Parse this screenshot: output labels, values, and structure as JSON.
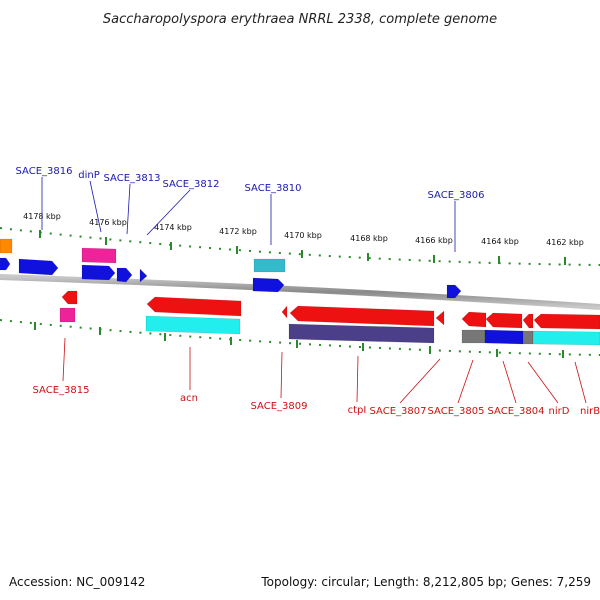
{
  "title": "Saccharopolyspora erythraea NRRL 2338, complete genome",
  "accession": "Accession: NC_009142",
  "topology": "Topology: circular; Length: 8,212,805 bp; Genes: 7,259",
  "colors": {
    "forward_label": "#1a1aaa",
    "reverse_label": "#cc1111",
    "ticks": "#2a8a2a",
    "backbone": "#909090",
    "red": "#ee1111",
    "blue": "#1111dd",
    "cyan": "#22eeee",
    "magenta": "#ee2299",
    "orange": "#ff8800",
    "purple": "#4a3f88",
    "teal": "#33bbcc",
    "gray": "#777777"
  },
  "ticks": [
    "4178 kbp",
    "4176 kbp",
    "4174 kbp",
    "4172 kbp",
    "4170 kbp",
    "4168 kbp",
    "4166 kbp",
    "4164 kbp",
    "4162 kbp"
  ],
  "forward_labels": [
    "SACE_3816",
    "dinP",
    "SACE_3813",
    "SACE_3812",
    "SACE_3810",
    "SACE_3806"
  ],
  "reverse_labels": [
    "SACE_3815",
    "acn",
    "SACE_3809",
    "ctpI",
    "SACE_3807",
    "SACE_3805",
    "SACE_3804",
    "nirD",
    "nirB"
  ]
}
